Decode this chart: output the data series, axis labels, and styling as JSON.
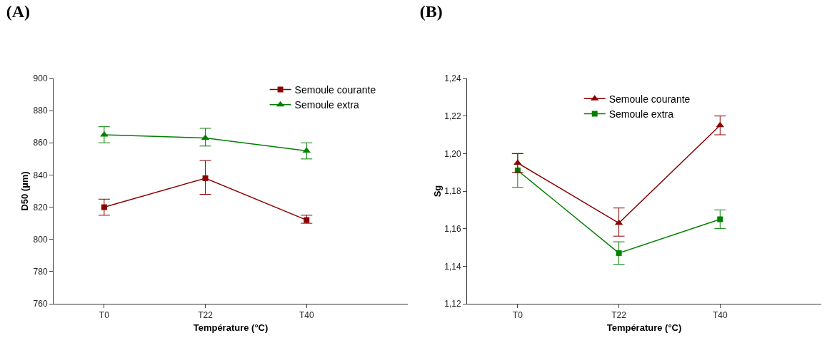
{
  "chart_data": [
    {
      "type": "line",
      "title": "(A)",
      "xlabel": "Température (°C)",
      "ylabel": "D50 (µm)",
      "categories": [
        "T0",
        "T22",
        "T40"
      ],
      "ylim": [
        760,
        900
      ],
      "yticks": [
        760,
        780,
        800,
        820,
        840,
        860,
        880,
        900
      ],
      "grid": false,
      "legend": "top right",
      "series": [
        {
          "name": "Semoule courante",
          "color": "#8b0000",
          "marker": "square",
          "values": [
            820,
            838,
            812
          ],
          "errors": [
            [
              815,
              825
            ],
            [
              828,
              849
            ],
            [
              810,
              815
            ]
          ]
        },
        {
          "name": "Semoule extra",
          "color": "#008000",
          "marker": "triangle",
          "values": [
            865,
            863,
            855
          ],
          "errors": [
            [
              860,
              870
            ],
            [
              858,
              869
            ],
            [
              850,
              860
            ]
          ]
        }
      ]
    },
    {
      "type": "line",
      "title": "(B)",
      "xlabel": "Température (°C)",
      "ylabel": "Sg",
      "categories": [
        "T0",
        "T22",
        "T40"
      ],
      "ylim": [
        1.12,
        1.24
      ],
      "yticks": [
        {
          "value": 1.12,
          "label": "1,12"
        },
        {
          "value": 1.14,
          "label": "1,14"
        },
        {
          "value": 1.16,
          "label": "1,16"
        },
        {
          "value": 1.18,
          "label": "1,18"
        },
        {
          "value": 1.2,
          "label": "1,20"
        },
        {
          "value": 1.22,
          "label": "1,22"
        },
        {
          "value": 1.24,
          "label": "1,24"
        }
      ],
      "grid": false,
      "legend": "top",
      "series": [
        {
          "name": "Semoule courante",
          "color": "#8b0000",
          "marker": "triangle",
          "values": [
            1.195,
            1.163,
            1.215
          ],
          "errors": [
            [
              1.19,
              1.2
            ],
            [
              1.156,
              1.171
            ],
            [
              1.21,
              1.22
            ]
          ]
        },
        {
          "name": "Semoule extra",
          "color": "#008000",
          "marker": "square",
          "values": [
            1.191,
            1.147,
            1.165
          ],
          "errors": [
            [
              1.182,
              1.2
            ],
            [
              1.141,
              1.153
            ],
            [
              1.16,
              1.17
            ]
          ]
        }
      ]
    }
  ]
}
